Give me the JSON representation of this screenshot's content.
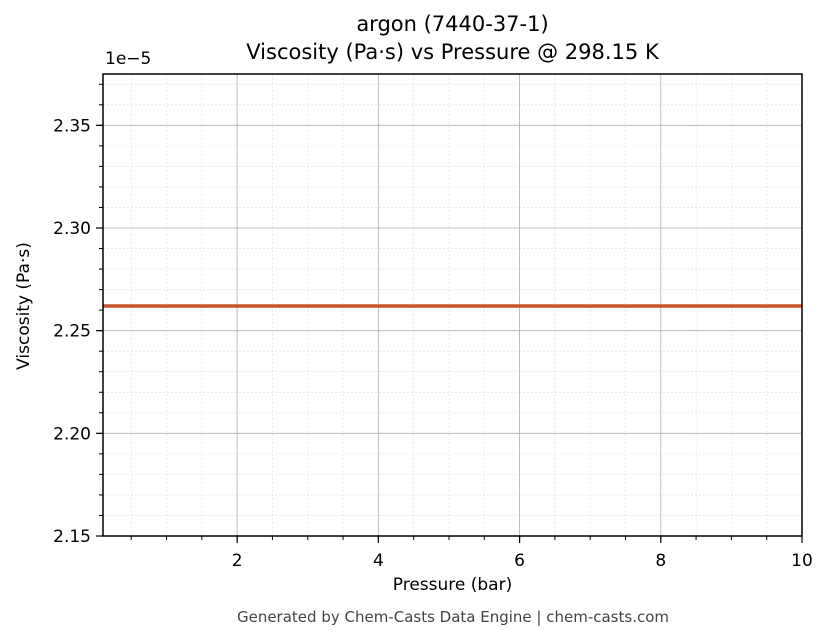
{
  "colors": {
    "series": "#c8552b",
    "grid_major": "#b0b0b0",
    "grid_minor": "#dddddd",
    "axis": "#000000",
    "footer": "#444444"
  },
  "header": {
    "title_line1": "argon (7440-37-1)",
    "title_line2": "Viscosity (Pa·s) vs Pressure @ 298.15 K"
  },
  "footer": {
    "text": "Generated by Chem-Casts Data Engine | chem-casts.com"
  },
  "chart_data": {
    "type": "line",
    "title": "argon (7440-37-1)\nViscosity (Pa·s) vs Pressure @ 298.15 K",
    "xlabel": "Pressure (bar)",
    "ylabel": "Viscosity (Pa·s)",
    "y_offset_label": "1e−5",
    "xlim": [
      0.1,
      10
    ],
    "ylim": [
      2.15,
      2.375
    ],
    "y_scale_factor": 1e-05,
    "x_ticks": [
      2,
      4,
      6,
      8,
      10
    ],
    "x_tick_labels": [
      "2",
      "4",
      "6",
      "8",
      "10"
    ],
    "y_ticks": [
      2.15,
      2.2,
      2.25,
      2.3,
      2.35
    ],
    "y_tick_labels": [
      "2.15",
      "2.20",
      "2.25",
      "2.30",
      "2.35"
    ],
    "grid": true,
    "minor_grid": true,
    "series": [
      {
        "x": [
          0.1,
          1,
          2,
          3,
          4,
          5,
          6,
          7,
          8,
          9,
          10
        ],
        "y": [
          2.262,
          2.262,
          2.262,
          2.262,
          2.262,
          2.262,
          2.262,
          2.262,
          2.262,
          2.262,
          2.262
        ]
      }
    ]
  }
}
